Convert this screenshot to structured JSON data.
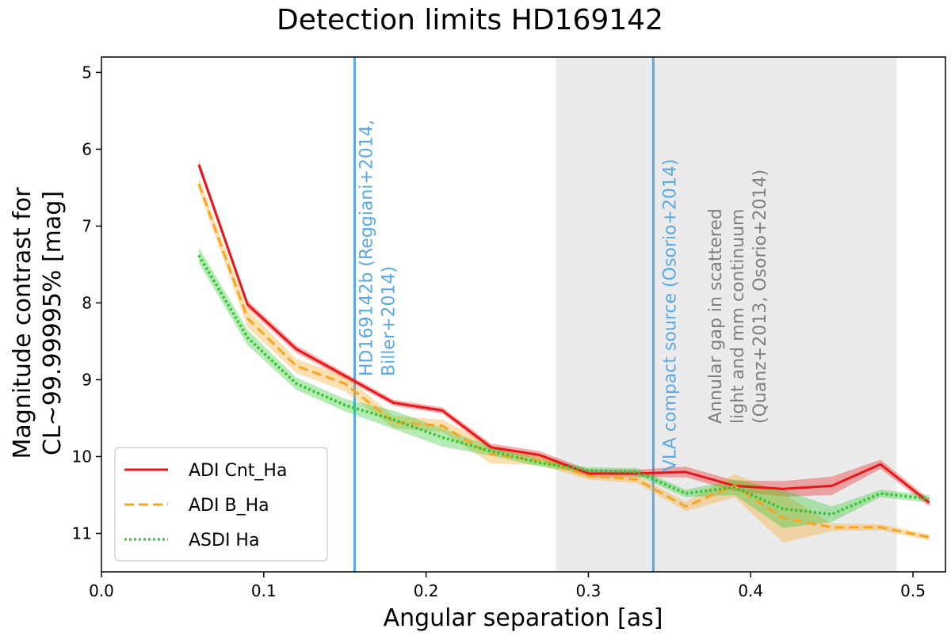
{
  "chart_data": {
    "type": "line",
    "title": "Detection limits HD169142",
    "xlabel": "Angular separation [as]",
    "ylabel_line1": "Magnitude contrast for",
    "ylabel_line2": "CL~99.99995% [mag]",
    "xlim": [
      0.0,
      0.52
    ],
    "ylim": [
      11.5,
      4.8
    ],
    "y_inverted": true,
    "grid": false,
    "legend_position": "lower-left",
    "xticks": [
      {
        "value": 0.0,
        "label": "0.0"
      },
      {
        "value": 0.1,
        "label": "0.1"
      },
      {
        "value": 0.2,
        "label": "0.2"
      },
      {
        "value": 0.3,
        "label": "0.3"
      },
      {
        "value": 0.4,
        "label": "0.4"
      },
      {
        "value": 0.5,
        "label": "0.5"
      }
    ],
    "yticks": [
      {
        "value": 5,
        "label": "5"
      },
      {
        "value": 6,
        "label": "6"
      },
      {
        "value": 7,
        "label": "7"
      },
      {
        "value": 8,
        "label": "8"
      },
      {
        "value": 9,
        "label": "9"
      },
      {
        "value": 10,
        "label": "10"
      },
      {
        "value": 11,
        "label": "11"
      }
    ],
    "shaded_region": {
      "x_range": [
        0.28,
        0.49
      ],
      "color": "#ebebeb",
      "label_lines": [
        "Annular gap in scattered",
        "light and mm continuum",
        "(Quanz+2013, Osorio+2014)"
      ],
      "label_color": "#7f7f7f"
    },
    "vertical_lines": [
      {
        "x": 0.156,
        "color": "#5aa9e6",
        "label_lines": [
          "HD169142b (Reggiani+2014,",
          "Biller+2014)"
        ]
      },
      {
        "x": 0.34,
        "color": "#5aa9e6",
        "label_lines": [
          "VLA compact source (Osorio+2014)"
        ]
      }
    ],
    "series": [
      {
        "name": "ADI Cnt_Ha",
        "color": "#e8161b",
        "style": "solid",
        "x": [
          0.06,
          0.09,
          0.12,
          0.15,
          0.18,
          0.21,
          0.24,
          0.27,
          0.3,
          0.33,
          0.36,
          0.39,
          0.42,
          0.45,
          0.48,
          0.51
        ],
        "y": [
          6.2,
          8.02,
          8.6,
          8.95,
          9.3,
          9.4,
          9.88,
          9.98,
          10.22,
          10.22,
          10.2,
          10.38,
          10.42,
          10.38,
          10.1,
          10.6
        ],
        "band": [
          0.06,
          0.05,
          0.05,
          0.04,
          0.04,
          0.04,
          0.05,
          0.05,
          0.05,
          0.05,
          0.07,
          0.07,
          0.1,
          0.12,
          0.06,
          0.05
        ]
      },
      {
        "name": "ADI B_Ha",
        "color": "#f5a623",
        "style": "dashed",
        "x": [
          0.06,
          0.09,
          0.12,
          0.15,
          0.18,
          0.21,
          0.24,
          0.27,
          0.3,
          0.33,
          0.36,
          0.39,
          0.42,
          0.45,
          0.48,
          0.51
        ],
        "y": [
          6.45,
          8.2,
          8.82,
          9.05,
          9.55,
          9.6,
          9.97,
          10.05,
          10.25,
          10.3,
          10.65,
          10.38,
          10.8,
          10.92,
          10.92,
          11.05
        ],
        "band": [
          0.08,
          0.12,
          0.09,
          0.1,
          0.08,
          0.08,
          0.12,
          0.06,
          0.05,
          0.05,
          0.06,
          0.15,
          0.32,
          0.05,
          0.04,
          0.04
        ]
      },
      {
        "name": "ASDI Ha",
        "color": "#2ec72e",
        "style": "dotted",
        "x": [
          0.06,
          0.09,
          0.12,
          0.15,
          0.18,
          0.21,
          0.24,
          0.27,
          0.3,
          0.33,
          0.36,
          0.39,
          0.42,
          0.45,
          0.48,
          0.51
        ],
        "y": [
          7.38,
          8.45,
          9.05,
          9.33,
          9.52,
          9.75,
          9.93,
          10.08,
          10.18,
          10.2,
          10.48,
          10.4,
          10.68,
          10.75,
          10.48,
          10.55
        ],
        "band": [
          0.1,
          0.1,
          0.08,
          0.08,
          0.12,
          0.12,
          0.06,
          0.05,
          0.04,
          0.05,
          0.05,
          0.1,
          0.25,
          0.1,
          0.05,
          0.05
        ]
      }
    ]
  }
}
